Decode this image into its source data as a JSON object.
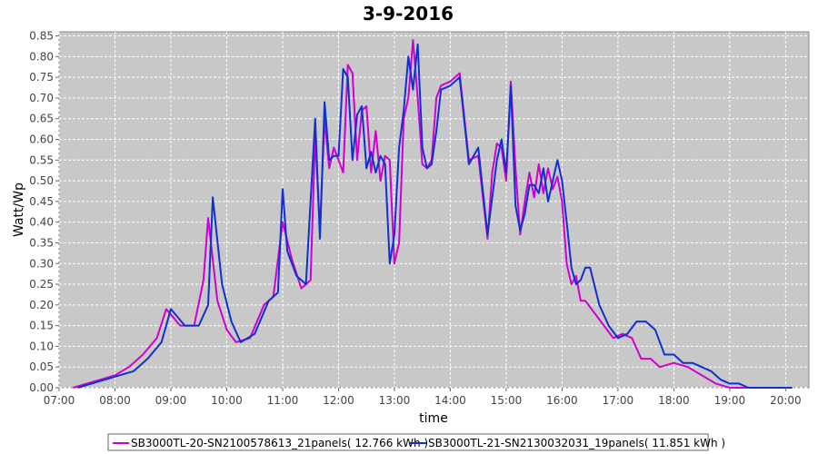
{
  "chart_data": {
    "type": "line",
    "title": "3-9-2016",
    "xlabel": "time",
    "ylabel": "Watt/Wp",
    "xlim": [
      "07:00",
      "20:25"
    ],
    "ylim": [
      0.0,
      0.86
    ],
    "grid": true,
    "legend_position": "bottom",
    "x_ticks": [
      "07:00",
      "08:00",
      "09:00",
      "10:00",
      "11:00",
      "12:00",
      "13:00",
      "14:00",
      "15:00",
      "16:00",
      "17:00",
      "18:00",
      "19:00",
      "20:00"
    ],
    "y_ticks": [
      "0.00",
      "0.05",
      "0.10",
      "0.15",
      "0.20",
      "0.25",
      "0.30",
      "0.35",
      "0.40",
      "0.45",
      "0.50",
      "0.55",
      "0.60",
      "0.65",
      "0.70",
      "0.75",
      "0.80",
      "0.85"
    ],
    "series": [
      {
        "name": "SB3000TL-20-SN2100578613_21panels( 12.766 kWh )",
        "color": "#d000d0",
        "x": [
          "07:15",
          "07:30",
          "07:45",
          "08:00",
          "08:15",
          "08:30",
          "08:45",
          "08:55",
          "09:10",
          "09:25",
          "09:35",
          "09:40",
          "09:50",
          "10:00",
          "10:10",
          "10:25",
          "10:40",
          "10:50",
          "11:00",
          "11:10",
          "11:20",
          "11:30",
          "11:35",
          "11:40",
          "11:45",
          "11:50",
          "11:55",
          "12:05",
          "12:10",
          "12:15",
          "12:20",
          "12:25",
          "12:30",
          "12:35",
          "12:40",
          "12:45",
          "12:50",
          "12:55",
          "13:00",
          "13:05",
          "13:10",
          "13:15",
          "13:20",
          "13:25",
          "13:30",
          "13:35",
          "13:40",
          "13:45",
          "13:50",
          "14:00",
          "14:10",
          "14:20",
          "14:30",
          "14:40",
          "14:45",
          "14:50",
          "14:55",
          "15:00",
          "15:05",
          "15:10",
          "15:15",
          "15:20",
          "15:25",
          "15:30",
          "15:35",
          "15:40",
          "15:45",
          "15:50",
          "15:55",
          "16:00",
          "16:05",
          "16:10",
          "16:15",
          "16:20",
          "16:25",
          "16:35",
          "16:45",
          "16:55",
          "17:05",
          "17:15",
          "17:25",
          "17:35",
          "17:45",
          "18:00",
          "18:15",
          "18:30",
          "18:45",
          "19:00",
          "19:15",
          "19:30",
          "19:45",
          "20:00",
          "20:07"
        ],
        "values": [
          0.0,
          0.01,
          0.02,
          0.03,
          0.05,
          0.08,
          0.12,
          0.19,
          0.15,
          0.15,
          0.26,
          0.41,
          0.21,
          0.14,
          0.11,
          0.12,
          0.2,
          0.22,
          0.4,
          0.31,
          0.24,
          0.26,
          0.61,
          0.38,
          0.65,
          0.53,
          0.58,
          0.52,
          0.78,
          0.76,
          0.55,
          0.67,
          0.68,
          0.52,
          0.62,
          0.5,
          0.56,
          0.55,
          0.3,
          0.35,
          0.65,
          0.7,
          0.84,
          0.7,
          0.54,
          0.53,
          0.55,
          0.7,
          0.73,
          0.74,
          0.76,
          0.55,
          0.56,
          0.36,
          0.52,
          0.59,
          0.58,
          0.5,
          0.74,
          0.53,
          0.37,
          0.45,
          0.52,
          0.46,
          0.54,
          0.47,
          0.53,
          0.48,
          0.51,
          0.45,
          0.3,
          0.25,
          0.27,
          0.21,
          0.21,
          0.18,
          0.15,
          0.12,
          0.13,
          0.12,
          0.07,
          0.07,
          0.05,
          0.06,
          0.05,
          0.03,
          0.01,
          0.0,
          0.0,
          0.0,
          0.0,
          0.0,
          0.0
        ]
      },
      {
        "name": "SB3000TL-21-SN2130032031_19panels( 11.851 kWh )",
        "color": "#1030d0",
        "x": [
          "07:20",
          "07:35",
          "07:50",
          "08:05",
          "08:20",
          "08:35",
          "08:50",
          "09:00",
          "09:15",
          "09:30",
          "09:40",
          "09:45",
          "09:55",
          "10:05",
          "10:15",
          "10:30",
          "10:45",
          "10:55",
          "11:00",
          "11:05",
          "11:15",
          "11:25",
          "11:35",
          "11:40",
          "11:45",
          "11:50",
          "11:55",
          "12:00",
          "12:05",
          "12:10",
          "12:15",
          "12:20",
          "12:25",
          "12:30",
          "12:35",
          "12:40",
          "12:45",
          "12:50",
          "12:55",
          "13:00",
          "13:05",
          "13:10",
          "13:15",
          "13:20",
          "13:25",
          "13:30",
          "13:35",
          "13:40",
          "13:45",
          "13:50",
          "14:00",
          "14:10",
          "14:20",
          "14:30",
          "14:40",
          "14:45",
          "14:50",
          "14:55",
          "15:00",
          "15:05",
          "15:10",
          "15:15",
          "15:20",
          "15:25",
          "15:30",
          "15:35",
          "15:40",
          "15:45",
          "15:50",
          "15:55",
          "16:00",
          "16:05",
          "16:10",
          "16:15",
          "16:20",
          "16:25",
          "16:30",
          "16:40",
          "16:50",
          "17:00",
          "17:10",
          "17:20",
          "17:30",
          "17:40",
          "17:50",
          "18:00",
          "18:10",
          "18:20",
          "18:30",
          "18:40",
          "18:50",
          "19:00",
          "19:10",
          "19:20",
          "19:30",
          "19:40",
          "19:50",
          "20:00",
          "20:07"
        ],
        "values": [
          0.0,
          0.01,
          0.02,
          0.03,
          0.04,
          0.07,
          0.11,
          0.19,
          0.15,
          0.15,
          0.2,
          0.46,
          0.25,
          0.16,
          0.11,
          0.13,
          0.21,
          0.23,
          0.48,
          0.33,
          0.27,
          0.25,
          0.65,
          0.36,
          0.69,
          0.55,
          0.56,
          0.56,
          0.77,
          0.75,
          0.55,
          0.66,
          0.68,
          0.53,
          0.57,
          0.52,
          0.56,
          0.54,
          0.3,
          0.37,
          0.58,
          0.67,
          0.8,
          0.72,
          0.83,
          0.58,
          0.53,
          0.54,
          0.62,
          0.72,
          0.73,
          0.75,
          0.54,
          0.58,
          0.37,
          0.46,
          0.55,
          0.6,
          0.52,
          0.73,
          0.44,
          0.38,
          0.42,
          0.49,
          0.49,
          0.47,
          0.53,
          0.45,
          0.5,
          0.55,
          0.5,
          0.4,
          0.29,
          0.25,
          0.26,
          0.29,
          0.29,
          0.2,
          0.15,
          0.12,
          0.13,
          0.16,
          0.16,
          0.14,
          0.08,
          0.08,
          0.06,
          0.06,
          0.05,
          0.04,
          0.02,
          0.01,
          0.01,
          0.0,
          0.0,
          0.0,
          0.0,
          0.0,
          0.0
        ]
      }
    ]
  }
}
